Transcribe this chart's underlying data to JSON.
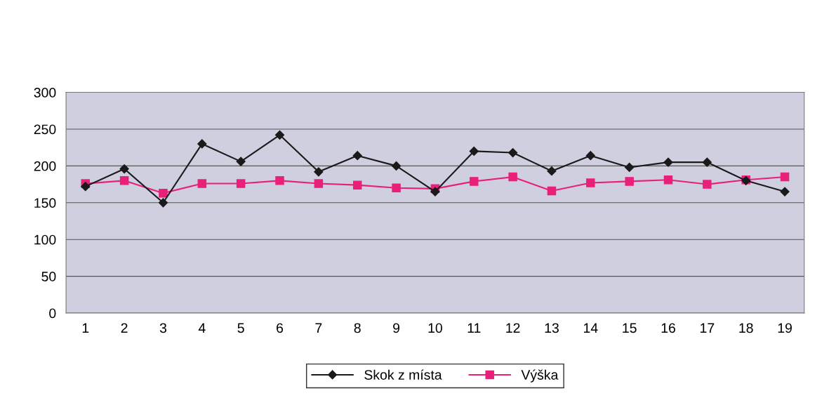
{
  "chart_data": {
    "type": "line",
    "categories": [
      "1",
      "2",
      "3",
      "4",
      "5",
      "6",
      "7",
      "8",
      "9",
      "10",
      "11",
      "12",
      "13",
      "14",
      "15",
      "16",
      "17",
      "18",
      "19"
    ],
    "series": [
      {
        "name": "Skok z místa",
        "color": "#1a1a1a",
        "marker": "diamond",
        "values": [
          172,
          196,
          150,
          230,
          206,
          242,
          192,
          214,
          200,
          165,
          220,
          218,
          193,
          214,
          198,
          205,
          205,
          180,
          165
        ]
      },
      {
        "name": "Výška",
        "color": "#e8207a",
        "marker": "square",
        "values": [
          176,
          180,
          163,
          176,
          176,
          180,
          176,
          174,
          170,
          169,
          179,
          185,
          166,
          177,
          179,
          181,
          175,
          181,
          185
        ]
      }
    ],
    "ylim": [
      0,
      300
    ],
    "yticks": [
      0,
      50,
      100,
      150,
      200,
      250,
      300
    ],
    "grid": "y",
    "legend": "bottom"
  }
}
